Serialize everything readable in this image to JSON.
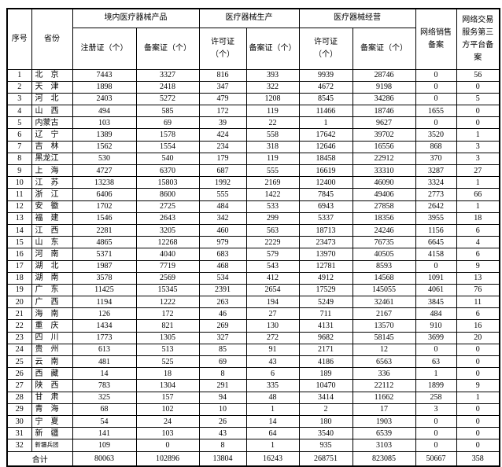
{
  "page": {
    "background_color": "#ffffff",
    "border_color": "#000000",
    "text_color": "#000000"
  },
  "table": {
    "header": {
      "no": "序号",
      "province": "省份",
      "groups": [
        {
          "label": "境内医疗器械产品",
          "subs": [
            "注册证（个）",
            "备案证（个）"
          ]
        },
        {
          "label": "医疗器械生产",
          "subs": [
            "许可证\n（个）",
            "备案证（个）"
          ]
        },
        {
          "label": "医疗器械经营",
          "subs": [
            "许可证\n（个）",
            "备案证（个）"
          ]
        }
      ],
      "online_sales": "网络销售\n备案",
      "platform": "网络交易\n服务第三\n方平台备\n案"
    },
    "rows": [
      {
        "no": 1,
        "province": "北　京",
        "values": [
          7443,
          3327,
          816,
          393,
          9939,
          28746,
          0,
          56
        ]
      },
      {
        "no": 2,
        "province": "天　津",
        "values": [
          1898,
          2418,
          347,
          322,
          4672,
          9198,
          0,
          0
        ]
      },
      {
        "no": 3,
        "province": "河　北",
        "values": [
          2403,
          5272,
          479,
          1208,
          8545,
          34286,
          0,
          5
        ]
      },
      {
        "no": 4,
        "province": "山　西",
        "values": [
          494,
          585,
          172,
          119,
          11466,
          18746,
          1655,
          0
        ]
      },
      {
        "no": 5,
        "province": "内蒙古",
        "values": [
          103,
          69,
          39,
          22,
          1,
          9627,
          0,
          0
        ]
      },
      {
        "no": 6,
        "province": "辽　宁",
        "values": [
          1389,
          1578,
          424,
          558,
          17642,
          39702,
          3520,
          1
        ]
      },
      {
        "no": 7,
        "province": "吉　林",
        "values": [
          1562,
          1554,
          234,
          318,
          12646,
          16556,
          868,
          3
        ]
      },
      {
        "no": 8,
        "province": "黑龙江",
        "values": [
          530,
          540,
          179,
          119,
          18458,
          22912,
          370,
          3
        ]
      },
      {
        "no": 9,
        "province": "上　海",
        "values": [
          4727,
          6370,
          687,
          555,
          16619,
          33310,
          3287,
          27
        ]
      },
      {
        "no": 10,
        "province": "江　苏",
        "values": [
          13238,
          15803,
          1992,
          2169,
          12400,
          46090,
          3324,
          1
        ]
      },
      {
        "no": 11,
        "province": "浙　江",
        "values": [
          6406,
          8600,
          555,
          1422,
          7845,
          49406,
          2773,
          66
        ]
      },
      {
        "no": 12,
        "province": "安　徽",
        "values": [
          1702,
          2725,
          484,
          533,
          6943,
          27858,
          2642,
          1
        ]
      },
      {
        "no": 13,
        "province": "福　建",
        "values": [
          1546,
          2643,
          342,
          299,
          5337,
          18356,
          3955,
          18
        ]
      },
      {
        "no": 14,
        "province": "江　西",
        "values": [
          2281,
          3205,
          460,
          563,
          18713,
          24246,
          1156,
          6
        ]
      },
      {
        "no": 15,
        "province": "山　东",
        "values": [
          4865,
          12268,
          979,
          2229,
          23473,
          76735,
          6645,
          4
        ]
      },
      {
        "no": 16,
        "province": "河　南",
        "values": [
          5371,
          4040,
          683,
          579,
          13970,
          40505,
          4158,
          6
        ]
      },
      {
        "no": 17,
        "province": "湖　北",
        "values": [
          1987,
          7719,
          468,
          543,
          12781,
          8593,
          0,
          9
        ]
      },
      {
        "no": 18,
        "province": "湖　南",
        "values": [
          3578,
          2569,
          534,
          412,
          4912,
          14568,
          1091,
          13
        ]
      },
      {
        "no": 19,
        "province": "广　东",
        "values": [
          11425,
          15345,
          2391,
          2654,
          17529,
          145055,
          4061,
          76
        ]
      },
      {
        "no": 20,
        "province": "广　西",
        "values": [
          1194,
          1222,
          263,
          194,
          5249,
          32461,
          3845,
          11
        ]
      },
      {
        "no": 21,
        "province": "海　南",
        "values": [
          126,
          172,
          46,
          27,
          711,
          2167,
          484,
          6
        ]
      },
      {
        "no": 22,
        "province": "重　庆",
        "values": [
          1434,
          821,
          269,
          130,
          4131,
          13570,
          910,
          16
        ]
      },
      {
        "no": 23,
        "province": "四　川",
        "values": [
          1773,
          1305,
          327,
          272,
          9682,
          58145,
          3699,
          20
        ]
      },
      {
        "no": 24,
        "province": "贵　州",
        "values": [
          613,
          513,
          85,
          91,
          2171,
          12,
          0,
          0
        ]
      },
      {
        "no": 25,
        "province": "云　南",
        "values": [
          481,
          525,
          69,
          43,
          4186,
          6563,
          63,
          0
        ]
      },
      {
        "no": 26,
        "province": "西　藏",
        "values": [
          14,
          18,
          8,
          6,
          189,
          336,
          1,
          0
        ]
      },
      {
        "no": 27,
        "province": "陕　西",
        "values": [
          783,
          1304,
          291,
          335,
          10470,
          22112,
          1899,
          9
        ]
      },
      {
        "no": 28,
        "province": "甘　肃",
        "values": [
          325,
          157,
          94,
          48,
          3414,
          11662,
          258,
          1
        ]
      },
      {
        "no": 29,
        "province": "青　海",
        "values": [
          68,
          102,
          10,
          1,
          2,
          17,
          3,
          0
        ]
      },
      {
        "no": 30,
        "province": "宁　夏",
        "values": [
          54,
          24,
          26,
          14,
          180,
          1903,
          0,
          0
        ]
      },
      {
        "no": 31,
        "province": "新　疆",
        "values": [
          141,
          103,
          43,
          64,
          3540,
          6539,
          0,
          0
        ]
      },
      {
        "no": 32,
        "province": "新疆兵团",
        "small": true,
        "values": [
          109,
          0,
          8,
          1,
          935,
          3103,
          0,
          0
        ]
      }
    ],
    "total": {
      "label": "合计",
      "values": [
        80063,
        102896,
        13804,
        16243,
        268751,
        823085,
        50667,
        358
      ]
    }
  }
}
